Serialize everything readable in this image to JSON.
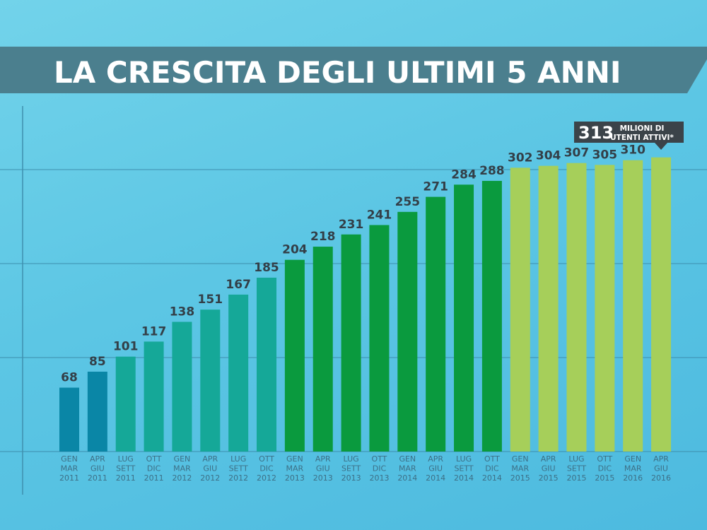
{
  "chart_data": {
    "type": "bar",
    "title": "LA CRESCITA DEGLI ULTIMI 5 ANNI",
    "categories": [
      [
        "GEN",
        "MAR",
        "2011"
      ],
      [
        "APR",
        "GIU",
        "2011"
      ],
      [
        "LUG",
        "SETT",
        "2011"
      ],
      [
        "OTT",
        "DIC",
        "2011"
      ],
      [
        "GEN",
        "MAR",
        "2012"
      ],
      [
        "APR",
        "GIU",
        "2012"
      ],
      [
        "LUG",
        "SETT",
        "2012"
      ],
      [
        "OTT",
        "DIC",
        "2012"
      ],
      [
        "GEN",
        "MAR",
        "2013"
      ],
      [
        "APR",
        "GIU",
        "2013"
      ],
      [
        "LUG",
        "SETT",
        "2013"
      ],
      [
        "OTT",
        "DIC",
        "2013"
      ],
      [
        "GEN",
        "MAR",
        "2014"
      ],
      [
        "APR",
        "GIU",
        "2014"
      ],
      [
        "LUG",
        "SETT",
        "2014"
      ],
      [
        "OTT",
        "DIC",
        "2014"
      ],
      [
        "GEN",
        "MAR",
        "2015"
      ],
      [
        "APR",
        "GIU",
        "2015"
      ],
      [
        "LUG",
        "SETT",
        "2015"
      ],
      [
        "OTT",
        "DIC",
        "2015"
      ],
      [
        "GEN",
        "MAR",
        "2016"
      ],
      [
        "APR",
        "GIU",
        "2016"
      ]
    ],
    "values": [
      68,
      85,
      101,
      117,
      138,
      151,
      167,
      185,
      204,
      218,
      231,
      241,
      255,
      271,
      284,
      288,
      302,
      304,
      307,
      305,
      310,
      313
    ],
    "value_labels": [
      "68",
      "85",
      "101",
      "117",
      "138",
      "151",
      "167",
      "185",
      "204",
      "218",
      "231",
      "241",
      "255",
      "271",
      "284",
      "288",
      "302",
      "304",
      "307",
      "305",
      "310",
      ""
    ],
    "bar_colors": [
      "#0a86a6",
      "#0a86a6",
      "#15a898",
      "#15a898",
      "#15a898",
      "#15a898",
      "#15a898",
      "#15a898",
      "#0a9a3e",
      "#0a9a3e",
      "#0a9a3e",
      "#0a9a3e",
      "#0a9a3e",
      "#0a9a3e",
      "#0a9a3e",
      "#0a9a3e",
      "#a6cf5a",
      "#a6cf5a",
      "#a6cf5a",
      "#a6cf5a",
      "#a6cf5a",
      "#a6cf5a"
    ],
    "ylim": [
      0,
      350
    ],
    "grid_values": [
      0,
      100,
      200,
      300
    ],
    "callout": {
      "value": "313",
      "line1": "MILIONI DI",
      "line2": "UTENTI ATTIVI*",
      "bar_index": 21
    },
    "colors": {
      "banner": "#4b7f8e",
      "value_text": "#333f48",
      "tick_text": "#3d6f86",
      "grid": "#3f8fae",
      "callout_bg": "#3b4349"
    }
  }
}
